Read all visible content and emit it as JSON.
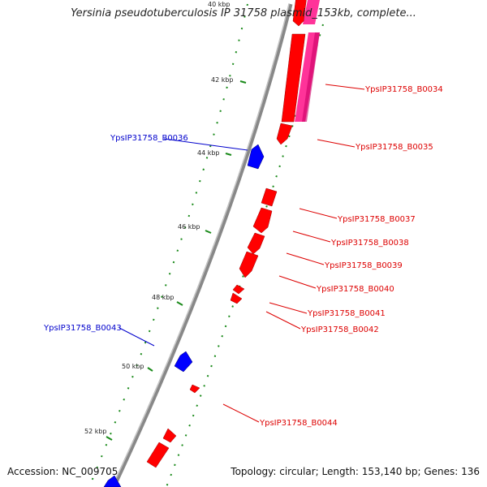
{
  "title": "Yersinia pseudotuberculosis IP 31758 plasmid_153kb, complete...",
  "accession": "Accession: NC_009705",
  "topology": "Topology: circular; Length: 153,140 bp; Genes: 136",
  "ticks": [
    "40 kbp",
    "42 kbp",
    "44 kbp",
    "46 kbp",
    "48 kbp",
    "50 kbp",
    "52 kbp"
  ],
  "genes": {
    "b0034": "YpsIP31758_B0034",
    "b0035": "YpsIP31758_B0035",
    "b0036": "YpsIP31758_B0036",
    "b0037": "YpsIP31758_B0037",
    "b0038": "YpsIP31758_B0038",
    "b0039": "YpsIP31758_B0039",
    "b0040": "YpsIP31758_B0040",
    "b0041": "YpsIP31758_B0041",
    "b0042": "YpsIP31758_B0042",
    "b0043": "YpsIP31758_B0043",
    "b0044": "YpsIP31758_B0044"
  },
  "colors": {
    "forward": "#ff0000",
    "reverse": "#0000ff",
    "rna": "#ff3399",
    "backbone": "#888888",
    "ticks": "#1a8a1a"
  }
}
